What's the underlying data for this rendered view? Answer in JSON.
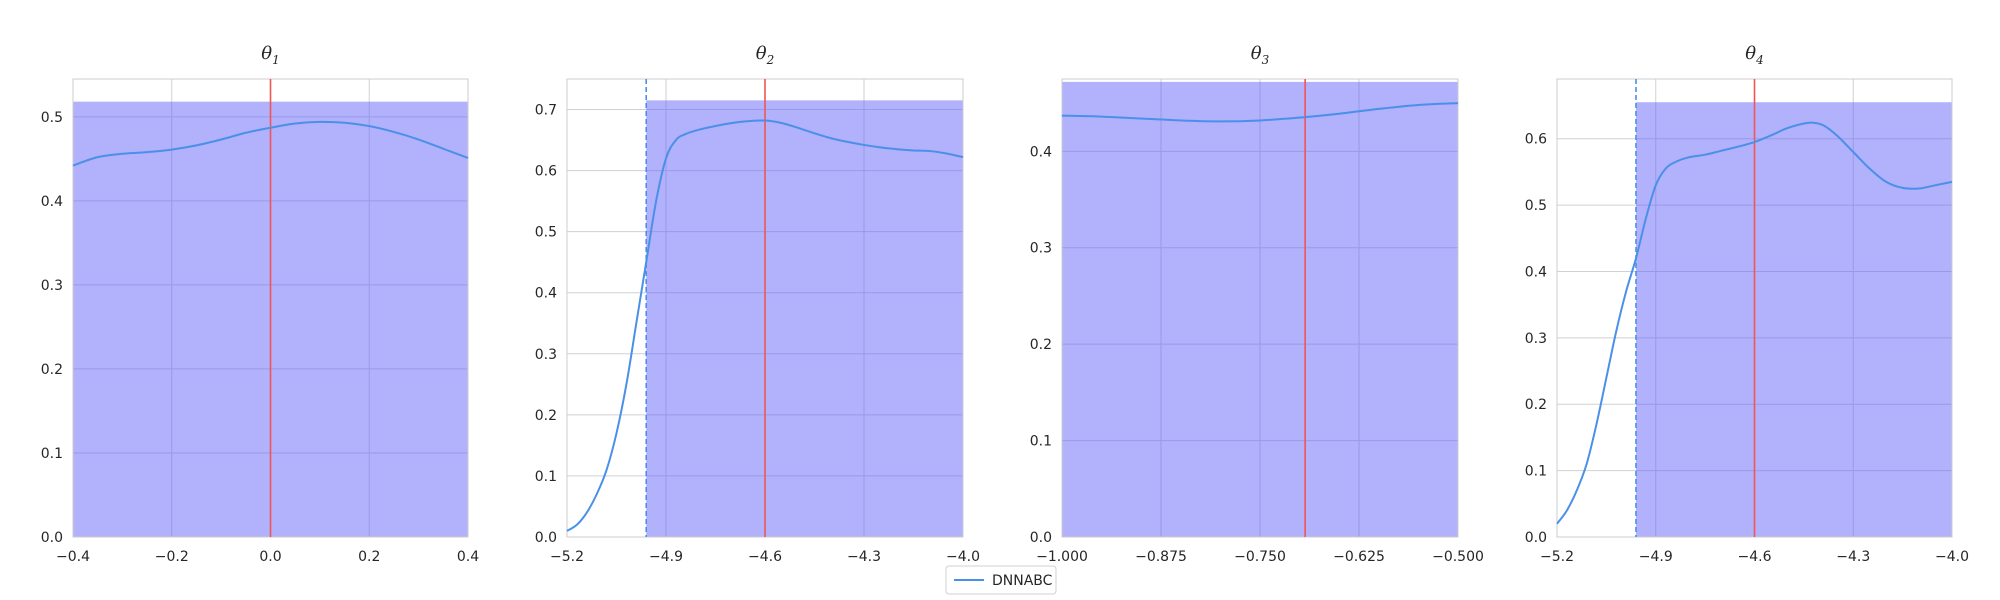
{
  "legend": {
    "label": "DNNABC"
  },
  "colors": {
    "shade": "#b0b0fd",
    "curve": "#4a90e8",
    "truth": "#f25555",
    "bound": "#4a90e8",
    "grid": "#cfcfd6",
    "axis": "#cccccc"
  },
  "chart_data": [
    {
      "type": "line",
      "title": "θ1",
      "title_base": "θ",
      "title_sub": "1",
      "xlim": [
        -0.4,
        0.4
      ],
      "ylim": [
        0,
        0.545
      ],
      "xticks": [
        -0.4,
        -0.2,
        0.0,
        0.2,
        0.4
      ],
      "xtick_labels": [
        "−0.4",
        "−0.2",
        "0.0",
        "0.2",
        "0.4"
      ],
      "yticks": [
        0.0,
        0.1,
        0.2,
        0.3,
        0.4,
        0.5
      ],
      "ytick_labels": [
        "0.0",
        "0.1",
        "0.2",
        "0.3",
        "0.4",
        "0.5"
      ],
      "shade_height": 0.518,
      "shade_x": [
        -0.4,
        0.4
      ],
      "truth_x": 0.0,
      "series": [
        {
          "name": "DNNABC",
          "x": [
            -0.4,
            -0.35,
            -0.3,
            -0.25,
            -0.2,
            -0.15,
            -0.1,
            -0.05,
            0.0,
            0.05,
            0.1,
            0.15,
            0.2,
            0.25,
            0.3,
            0.35,
            0.4
          ],
          "y": [
            0.442,
            0.452,
            0.456,
            0.458,
            0.461,
            0.466,
            0.473,
            0.481,
            0.487,
            0.492,
            0.494,
            0.493,
            0.489,
            0.482,
            0.473,
            0.462,
            0.451
          ]
        }
      ]
    },
    {
      "type": "line",
      "title": "θ2",
      "title_base": "θ",
      "title_sub": "2",
      "xlim": [
        -5.2,
        -4.0
      ],
      "ylim": [
        0,
        0.75
      ],
      "xticks": [
        -5.2,
        -4.9,
        -4.6,
        -4.3,
        -4.0
      ],
      "xtick_labels": [
        "−5.2",
        "−4.9",
        "−4.6",
        "−4.3",
        "−4.0"
      ],
      "yticks": [
        0.0,
        0.1,
        0.2,
        0.3,
        0.4,
        0.5,
        0.6,
        0.7
      ],
      "ytick_labels": [
        "0.0",
        "0.1",
        "0.2",
        "0.3",
        "0.4",
        "0.5",
        "0.6",
        "0.7"
      ],
      "shade_height": 0.715,
      "shade_x": [
        -4.96,
        -4.0
      ],
      "truth_x": -4.6,
      "bound_x": -4.96,
      "series": [
        {
          "name": "DNNABC",
          "x": [
            -5.2,
            -5.17,
            -5.14,
            -5.11,
            -5.08,
            -5.05,
            -5.02,
            -4.99,
            -4.96,
            -4.93,
            -4.9,
            -4.87,
            -4.84,
            -4.8,
            -4.75,
            -4.7,
            -4.65,
            -4.6,
            -4.55,
            -4.5,
            -4.45,
            -4.4,
            -4.35,
            -4.3,
            -4.25,
            -4.2,
            -4.15,
            -4.1,
            -4.05,
            -4.0
          ],
          "y": [
            0.01,
            0.02,
            0.04,
            0.07,
            0.11,
            0.17,
            0.25,
            0.35,
            0.45,
            0.55,
            0.62,
            0.65,
            0.66,
            0.667,
            0.673,
            0.678,
            0.681,
            0.682,
            0.678,
            0.67,
            0.661,
            0.653,
            0.647,
            0.642,
            0.638,
            0.635,
            0.633,
            0.632,
            0.628,
            0.622
          ]
        }
      ]
    },
    {
      "type": "line",
      "title": "θ3",
      "title_base": "θ",
      "title_sub": "3",
      "xlim": [
        -1.0,
        -0.5
      ],
      "ylim": [
        0,
        0.475
      ],
      "xticks": [
        -1.0,
        -0.875,
        -0.75,
        -0.625,
        -0.5
      ],
      "xtick_labels": [
        "−1.000",
        "−0.875",
        "−0.750",
        "−0.625",
        "−0.500"
      ],
      "yticks": [
        0.0,
        0.1,
        0.2,
        0.3,
        0.4
      ],
      "ytick_labels": [
        "0.0",
        "0.1",
        "0.2",
        "0.3",
        "0.4"
      ],
      "shade_height": 0.472,
      "shade_x": [
        -1.0,
        -0.5
      ],
      "truth_x": -0.693,
      "series": [
        {
          "name": "DNNABC",
          "x": [
            -1.0,
            -0.95,
            -0.9,
            -0.85,
            -0.8,
            -0.75,
            -0.7,
            -0.65,
            -0.6,
            -0.55,
            -0.5
          ],
          "y": [
            0.437,
            0.436,
            0.434,
            0.432,
            0.431,
            0.432,
            0.435,
            0.439,
            0.444,
            0.448,
            0.45
          ]
        }
      ]
    },
    {
      "type": "line",
      "title": "θ4",
      "title_base": "θ",
      "title_sub": "4",
      "xlim": [
        -5.2,
        -4.0
      ],
      "ylim": [
        0,
        0.69
      ],
      "xticks": [
        -5.2,
        -4.9,
        -4.6,
        -4.3,
        -4.0
      ],
      "xtick_labels": [
        "−5.2",
        "−4.9",
        "−4.6",
        "−4.3",
        "−4.0"
      ],
      "yticks": [
        0.0,
        0.1,
        0.2,
        0.3,
        0.4,
        0.5,
        0.6
      ],
      "ytick_labels": [
        "0.0",
        "0.1",
        "0.2",
        "0.3",
        "0.4",
        "0.5",
        "0.6"
      ],
      "shade_height": 0.655,
      "shade_x": [
        -4.96,
        -4.0
      ],
      "truth_x": -4.6,
      "bound_x": -4.96,
      "series": [
        {
          "name": "DNNABC",
          "x": [
            -5.2,
            -5.17,
            -5.14,
            -5.11,
            -5.08,
            -5.05,
            -5.02,
            -4.99,
            -4.96,
            -4.93,
            -4.9,
            -4.87,
            -4.84,
            -4.8,
            -4.75,
            -4.7,
            -4.65,
            -4.6,
            -4.55,
            -4.5,
            -4.45,
            -4.42,
            -4.39,
            -4.35,
            -4.3,
            -4.25,
            -4.2,
            -4.15,
            -4.1,
            -4.05,
            -4.0
          ],
          "y": [
            0.02,
            0.04,
            0.07,
            0.11,
            0.17,
            0.24,
            0.31,
            0.37,
            0.42,
            0.48,
            0.53,
            0.555,
            0.565,
            0.572,
            0.576,
            0.582,
            0.588,
            0.595,
            0.605,
            0.616,
            0.623,
            0.624,
            0.62,
            0.605,
            0.58,
            0.555,
            0.535,
            0.526,
            0.525,
            0.53,
            0.535
          ]
        }
      ]
    }
  ]
}
